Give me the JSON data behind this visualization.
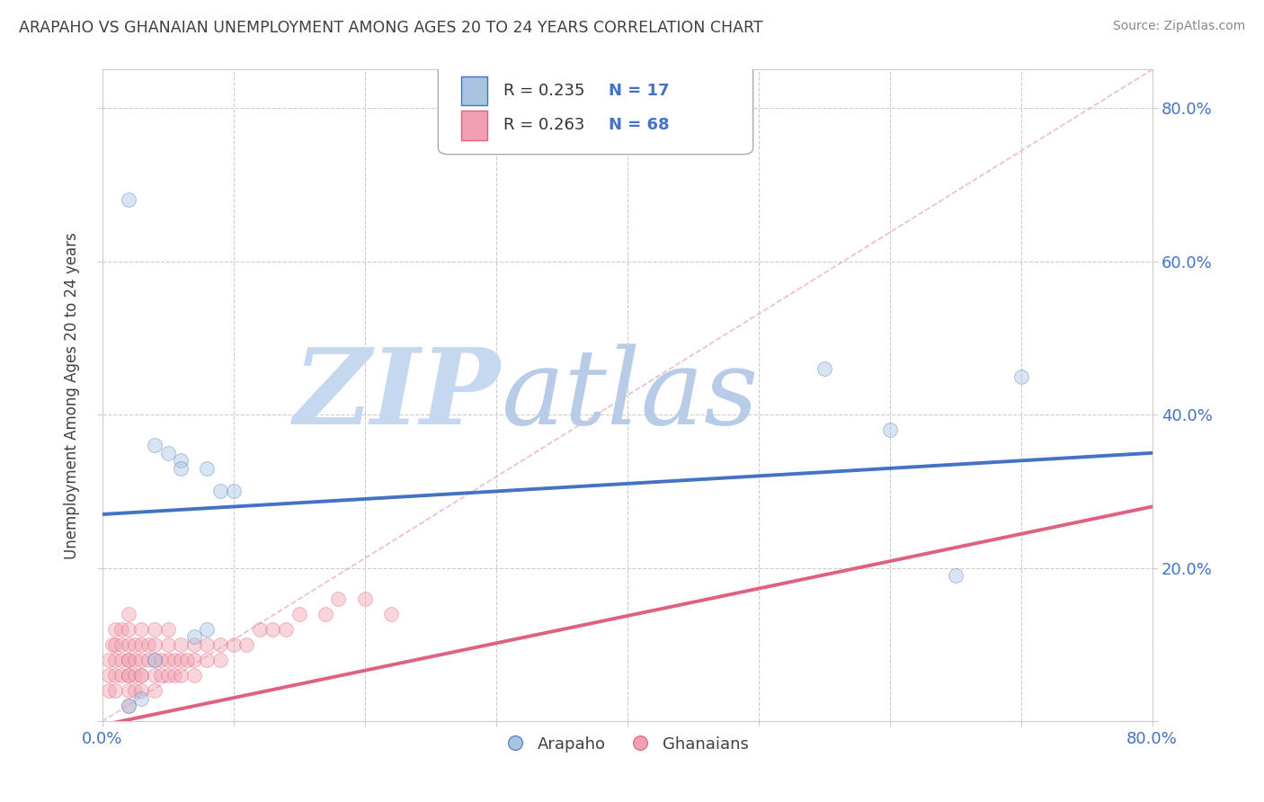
{
  "title": "ARAPAHO VS GHANAIAN UNEMPLOYMENT AMONG AGES 20 TO 24 YEARS CORRELATION CHART",
  "source": "Source: ZipAtlas.com",
  "ylabel": "Unemployment Among Ages 20 to 24 years",
  "arapaho_color": "#a8c4e0",
  "ghanaian_color": "#f0a0b0",
  "arapaho_line_color": "#4472c4",
  "ghanaian_line_color": "#e06080",
  "title_color": "#404040",
  "tick_label_color": "#4472c4",
  "watermark_zip_color": "#c8d8ee",
  "watermark_atlas_color": "#b0c8e8",
  "xlim": [
    0,
    0.8
  ],
  "ylim": [
    0,
    0.85
  ],
  "xticks": [
    0.0,
    0.1,
    0.2,
    0.3,
    0.4,
    0.5,
    0.6,
    0.7,
    0.8
  ],
  "yticks": [
    0.0,
    0.2,
    0.4,
    0.6,
    0.8
  ],
  "grid_color": "#cccccc",
  "background_color": "#ffffff",
  "marker_size": 130,
  "marker_alpha": 0.45,
  "line_width": 2.8,
  "arapaho_trend_start_y": 0.27,
  "arapaho_trend_end_y": 0.35,
  "ghanaian_trend_start_y": -0.005,
  "ghanaian_trend_end_y": 0.28,
  "arapaho_x": [
    0.02,
    0.04,
    0.05,
    0.06,
    0.06,
    0.08,
    0.08,
    0.09,
    0.1,
    0.55,
    0.6,
    0.65,
    0.7,
    0.02,
    0.04,
    0.03,
    0.07
  ],
  "arapaho_y": [
    0.68,
    0.36,
    0.35,
    0.34,
    0.33,
    0.33,
    0.12,
    0.3,
    0.3,
    0.46,
    0.38,
    0.19,
    0.45,
    0.02,
    0.08,
    0.03,
    0.11
  ],
  "ghanaian_x": [
    0.005,
    0.005,
    0.005,
    0.008,
    0.01,
    0.01,
    0.01,
    0.01,
    0.01,
    0.015,
    0.015,
    0.015,
    0.015,
    0.02,
    0.02,
    0.02,
    0.02,
    0.02,
    0.02,
    0.02,
    0.02,
    0.02,
    0.025,
    0.025,
    0.025,
    0.025,
    0.03,
    0.03,
    0.03,
    0.03,
    0.03,
    0.03,
    0.035,
    0.035,
    0.04,
    0.04,
    0.04,
    0.04,
    0.04,
    0.045,
    0.045,
    0.05,
    0.05,
    0.05,
    0.05,
    0.055,
    0.055,
    0.06,
    0.06,
    0.06,
    0.065,
    0.07,
    0.07,
    0.07,
    0.08,
    0.08,
    0.09,
    0.09,
    0.1,
    0.11,
    0.12,
    0.13,
    0.14,
    0.15,
    0.17,
    0.18,
    0.2,
    0.22
  ],
  "ghanaian_y": [
    0.08,
    0.06,
    0.04,
    0.1,
    0.08,
    0.06,
    0.04,
    0.1,
    0.12,
    0.06,
    0.08,
    0.1,
    0.12,
    0.02,
    0.04,
    0.06,
    0.08,
    0.1,
    0.12,
    0.14,
    0.06,
    0.08,
    0.04,
    0.06,
    0.08,
    0.1,
    0.04,
    0.06,
    0.08,
    0.1,
    0.12,
    0.06,
    0.08,
    0.1,
    0.06,
    0.08,
    0.1,
    0.04,
    0.12,
    0.06,
    0.08,
    0.06,
    0.08,
    0.1,
    0.12,
    0.06,
    0.08,
    0.06,
    0.08,
    0.1,
    0.08,
    0.06,
    0.08,
    0.1,
    0.08,
    0.1,
    0.08,
    0.1,
    0.1,
    0.1,
    0.12,
    0.12,
    0.12,
    0.14,
    0.14,
    0.16,
    0.16,
    0.14
  ]
}
